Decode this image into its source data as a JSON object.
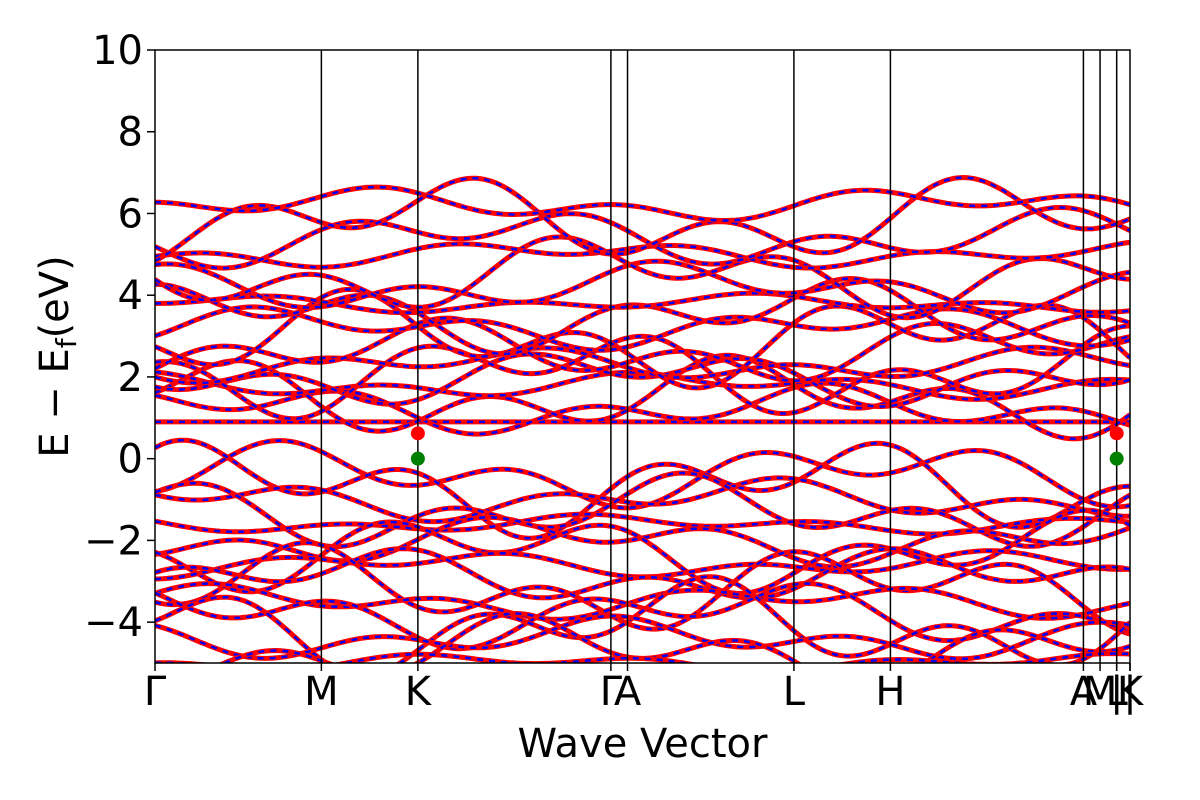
{
  "chart_data": {
    "type": "line",
    "title": "",
    "xlabel": "Wave Vector",
    "ylabel": "E − E",
    "ylabel_subscript": "f",
    "ylabel_unit": "(eV)",
    "ylim": [
      -5,
      10
    ],
    "yticks": [
      -4,
      -2,
      0,
      2,
      4,
      6,
      8,
      10
    ],
    "ytick_labels": [
      "−4",
      "−2",
      "0",
      "2",
      "4",
      "6",
      "8",
      "10"
    ],
    "kpoint_labels": [
      {
        "label": "Γ",
        "x": 0.0
      },
      {
        "label": "M",
        "x": 1.0
      },
      {
        "label": "K",
        "x": 1.58
      },
      {
        "label": "Γ",
        "x": 2.74
      },
      {
        "label": "A",
        "x": 2.84
      },
      {
        "label": "L",
        "x": 3.84
      },
      {
        "label": "H",
        "x": 4.42
      },
      {
        "label": "A",
        "x": 5.58
      },
      {
        "label": "M",
        "x": 5.68
      },
      {
        "label": "|",
        "x": 5.78
      },
      {
        "label": "L",
        "x": 5.78
      },
      {
        "label": "|",
        "x": 5.86
      },
      {
        "label": "K",
        "x": 5.86
      }
    ],
    "xlim": [
      0.0,
      5.86
    ],
    "colors": {
      "bands_dft": "#ff0000",
      "bands_wannier": "#0000ff",
      "cbm": "#ff0000",
      "vbm": "#008000",
      "vline": "#000000"
    },
    "series": [
      {
        "name": "",
        "style": "dft",
        "bands": []
      },
      {
        "name": "",
        "style": "wannier",
        "bands": []
      }
    ],
    "flat_bands": [
      0.9
    ],
    "band_extrema": {
      "cbm": {
        "x": 1.58,
        "y": 0.62
      },
      "vbm": {
        "x": 1.58,
        "y": 0.0
      },
      "cbm_repeat": {
        "x": 5.78,
        "y": 0.62
      },
      "vbm_repeat": {
        "x": 5.78,
        "y": 0.0
      }
    },
    "band_centers": {
      "conduction": [
        0.9,
        1.2,
        1.5,
        1.8,
        2.0,
        2.1,
        2.3,
        2.6,
        2.9,
        3.2,
        3.5,
        3.8,
        4.2,
        4.5,
        5.0,
        5.4,
        5.8,
        6.2
      ],
      "valence": [
        -0.4,
        -0.7,
        -1.0,
        -1.3,
        -1.6,
        -2.0,
        -2.3,
        -2.6,
        -2.9,
        -3.2,
        -3.5,
        -3.8,
        -4.1,
        -4.4,
        -4.7,
        -5.0
      ]
    },
    "legend": "none",
    "grid": false
  }
}
